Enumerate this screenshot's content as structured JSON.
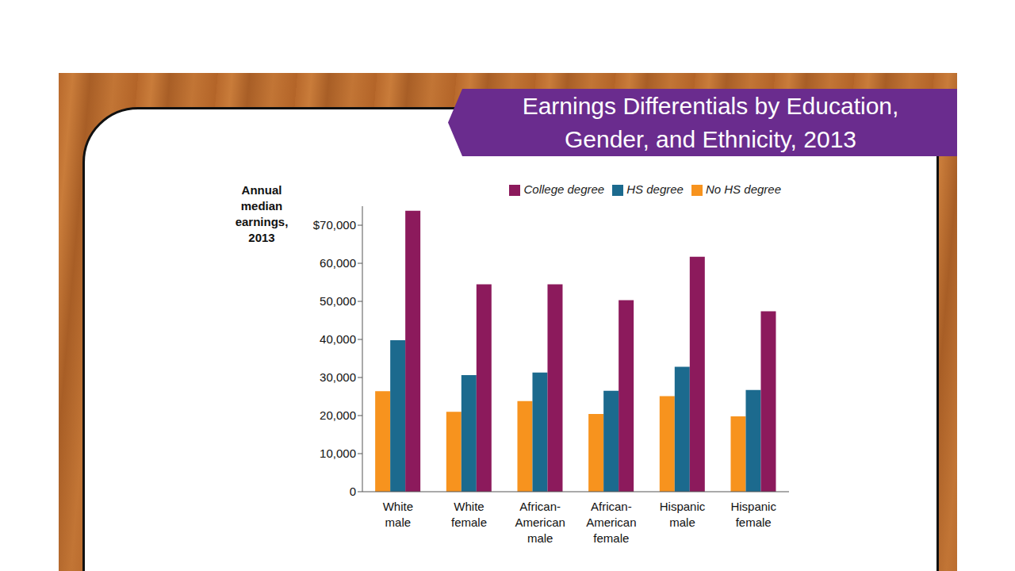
{
  "chart_data": {
    "type": "bar",
    "title": "Earnings Differentials by Education, Gender, and Ethnicity, 2013",
    "y_label": "Annual median earnings, 2013",
    "categories": [
      "White male",
      "White female",
      "African-American male",
      "African-American female",
      "Hispanic male",
      "Hispanic female"
    ],
    "series": [
      {
        "name": "No HS degree",
        "color": "#f7931e",
        "values": [
          26400,
          21000,
          23800,
          20400,
          25100,
          19800
        ]
      },
      {
        "name": "HS degree",
        "color": "#1c6a8e",
        "values": [
          39800,
          30600,
          31300,
          26500,
          32800,
          26700
        ]
      },
      {
        "name": "College degree",
        "color": "#8c1a5c",
        "values": [
          73800,
          54500,
          54500,
          50300,
          61700,
          47400
        ]
      }
    ],
    "ylim": [
      0,
      75000
    ],
    "yticks": [
      0,
      {
        "value": 10000,
        "label": "10,000"
      },
      {
        "value": 20000,
        "label": "20,000"
      },
      {
        "value": 30000,
        "label": "30,000"
      },
      {
        "value": 40000,
        "label": "40,000"
      },
      {
        "value": 50000,
        "label": "50,000"
      },
      {
        "value": 60000,
        "label": "60,000"
      },
      {
        "value": 70000,
        "label": "$70,000"
      }
    ],
    "grid": false,
    "legend": "top-right"
  }
}
